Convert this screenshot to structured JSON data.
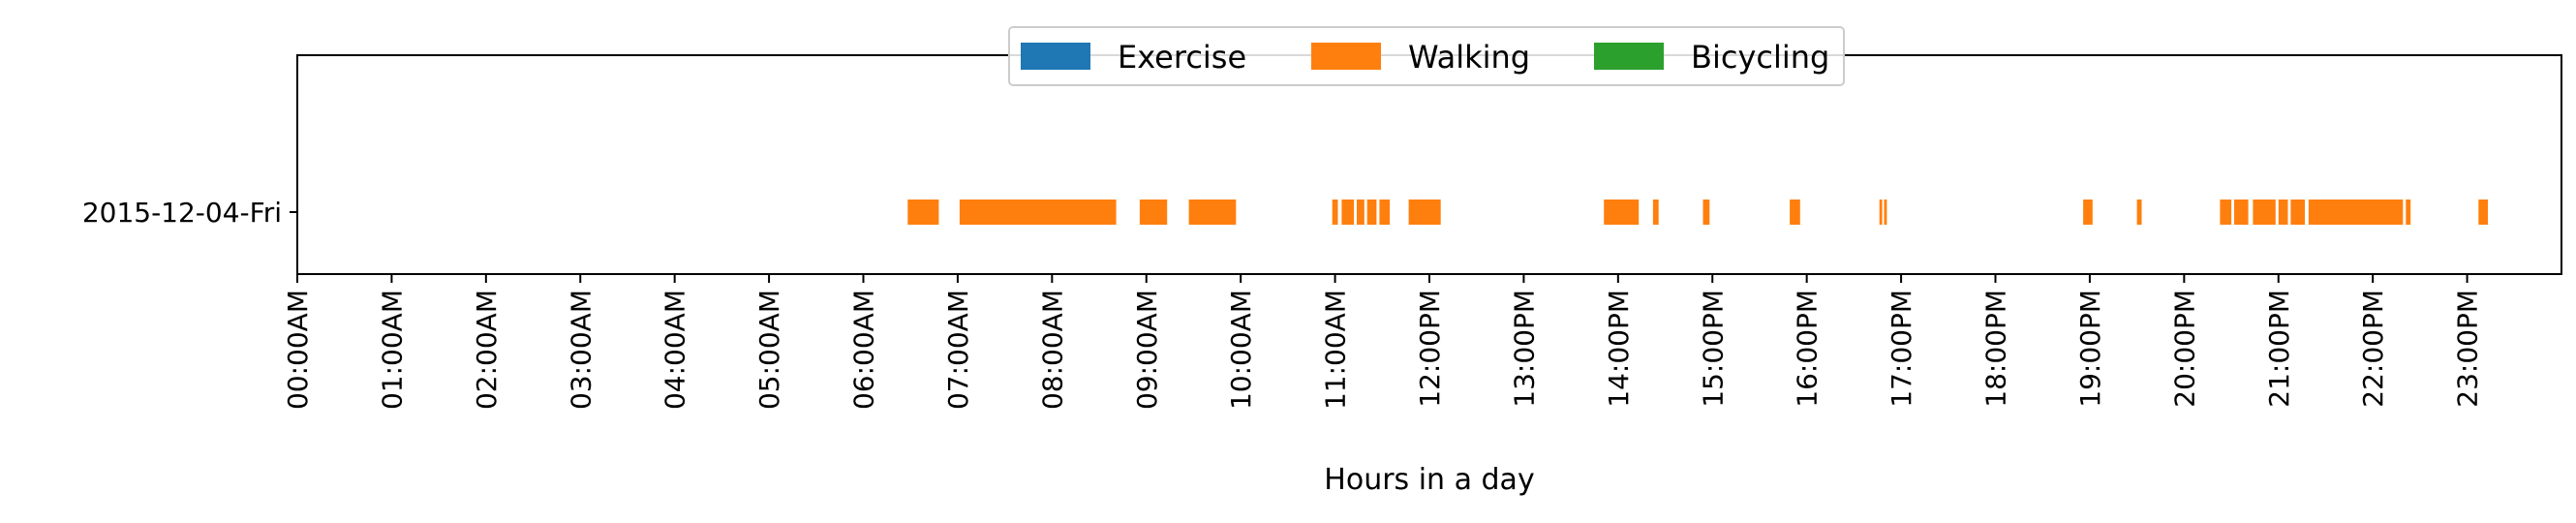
{
  "chart_data": {
    "type": "timeline",
    "title": "",
    "xlabel": "Hours in a day",
    "ylabel": "",
    "xlim_hours": [
      0,
      24
    ],
    "x_tick_labels": [
      "00:00AM",
      "01:00AM",
      "02:00AM",
      "03:00AM",
      "04:00AM",
      "05:00AM",
      "06:00AM",
      "07:00AM",
      "08:00AM",
      "09:00AM",
      "10:00AM",
      "11:00AM",
      "12:00PM",
      "13:00PM",
      "14:00PM",
      "15:00PM",
      "16:00PM",
      "17:00PM",
      "18:00PM",
      "19:00PM",
      "20:00PM",
      "21:00PM",
      "22:00PM",
      "23:00PM"
    ],
    "rows": [
      "2015-12-04-Fri"
    ],
    "legend": {
      "placement": "top-center",
      "entries": [
        {
          "name": "Exercise",
          "color": "#1f77b4"
        },
        {
          "name": "Walking",
          "color": "#ff7f0e"
        },
        {
          "name": "Bicycling",
          "color": "#2ca02c"
        }
      ]
    },
    "series": [
      {
        "name": "Exercise",
        "color": "#1f77b4",
        "intervals": []
      },
      {
        "name": "Walking",
        "color": "#ff7f0e",
        "intervals": [
          {
            "row": 0,
            "start": 6.47,
            "end": 6.8
          },
          {
            "row": 0,
            "start": 7.02,
            "end": 8.68
          },
          {
            "row": 0,
            "start": 8.93,
            "end": 9.22
          },
          {
            "row": 0,
            "start": 9.45,
            "end": 9.95
          },
          {
            "row": 0,
            "start": 10.97,
            "end": 11.03
          },
          {
            "row": 0,
            "start": 11.07,
            "end": 11.2
          },
          {
            "row": 0,
            "start": 11.23,
            "end": 11.31
          },
          {
            "row": 0,
            "start": 11.34,
            "end": 11.44
          },
          {
            "row": 0,
            "start": 11.47,
            "end": 11.58
          },
          {
            "row": 0,
            "start": 11.78,
            "end": 12.12
          },
          {
            "row": 0,
            "start": 13.85,
            "end": 14.22
          },
          {
            "row": 0,
            "start": 14.37,
            "end": 14.43
          },
          {
            "row": 0,
            "start": 14.9,
            "end": 14.97
          },
          {
            "row": 0,
            "start": 15.82,
            "end": 15.93
          },
          {
            "row": 0,
            "start": 16.77,
            "end": 16.8
          },
          {
            "row": 0,
            "start": 16.82,
            "end": 16.85
          },
          {
            "row": 0,
            "start": 18.93,
            "end": 19.03
          },
          {
            "row": 0,
            "start": 19.5,
            "end": 19.55
          },
          {
            "row": 0,
            "start": 20.38,
            "end": 20.5
          },
          {
            "row": 0,
            "start": 20.53,
            "end": 20.68
          },
          {
            "row": 0,
            "start": 20.73,
            "end": 20.97
          },
          {
            "row": 0,
            "start": 21.0,
            "end": 21.1
          },
          {
            "row": 0,
            "start": 21.13,
            "end": 21.28
          },
          {
            "row": 0,
            "start": 21.32,
            "end": 22.32
          },
          {
            "row": 0,
            "start": 22.35,
            "end": 22.4
          },
          {
            "row": 0,
            "start": 23.12,
            "end": 23.22
          }
        ]
      },
      {
        "name": "Bicycling",
        "color": "#2ca02c",
        "intervals": []
      }
    ]
  }
}
